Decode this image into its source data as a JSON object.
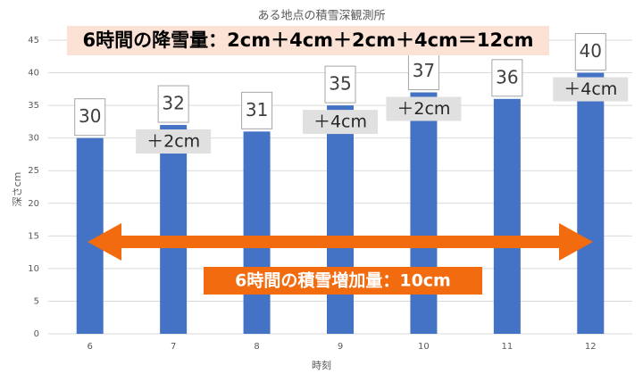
{
  "chart_data": {
    "type": "bar",
    "title": "ある地点の積雪深観測所",
    "x_label": "時刻",
    "y_label": "深さcm",
    "categories": [
      6,
      7,
      8,
      9,
      10,
      11,
      12
    ],
    "values": [
      30,
      32,
      31,
      35,
      37,
      36,
      40
    ],
    "color": "#4472c4",
    "ylim": [
      0,
      45
    ],
    "yticks": [
      0,
      5,
      10,
      15,
      20,
      25,
      30,
      35,
      40,
      45
    ],
    "grid": true
  },
  "annotations": {
    "snowfall_total": "6時間の降雪量：2cm＋4cm＋2cm＋4cm＝12cm",
    "increase_total": "6時間の積雪増加量：10cm",
    "increments": [
      null,
      "＋2cm",
      null,
      "＋4cm",
      "＋2cm",
      null,
      "＋4cm"
    ]
  }
}
